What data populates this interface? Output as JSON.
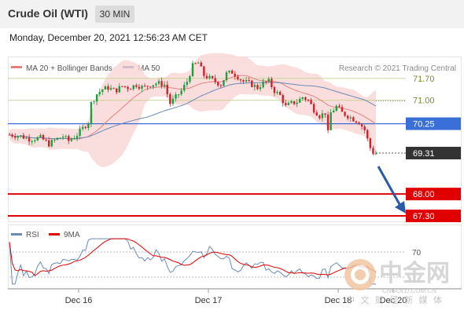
{
  "header": {
    "title": "Crude Oil (WTI)",
    "timeframe": "30 MIN"
  },
  "timestamp": "Monday, December 20, 2021 12:56:23 AM CET",
  "colors": {
    "resistance": "#c9d49a",
    "pivot": "#3a6fd8",
    "support": "#e00000",
    "ma20": "#e88080",
    "bands": "#f9d4d4",
    "ma50": "#6a8ab8",
    "candle_up": "#1e9e3e",
    "candle_down": "#d0202a",
    "arrow": "#2a5aa8",
    "last_price_box": "#333333",
    "rsi": "#6a8ab8",
    "rsi_ma": "#e00000"
  },
  "chart_data": [
    {
      "type": "candlestick",
      "legend": [
        {
          "label": "MA 20 + Bollinger Bands",
          "color": "#e88080"
        },
        {
          "label": "MA 50",
          "color": "#3a5a98"
        }
      ],
      "credit": "Research © 2021 Trading Central",
      "x_ticks": [
        "Dec 16",
        "Dec 17",
        "Dec 18",
        "Dec 20"
      ],
      "y_range": [
        67.1,
        72.4
      ],
      "levels": [
        {
          "value": 71.7,
          "label": "71.70",
          "kind": "resistance"
        },
        {
          "value": 71.0,
          "label": "71.00",
          "kind": "resistance"
        },
        {
          "value": 70.25,
          "label": "70.25",
          "kind": "pivot"
        },
        {
          "value": 69.31,
          "label": "69.31",
          "kind": "last"
        },
        {
          "value": 68.0,
          "label": "68.00",
          "kind": "support"
        },
        {
          "value": 67.3,
          "label": "67.30",
          "kind": "support"
        }
      ],
      "price_path": [
        [
          0,
          69.9
        ],
        [
          8,
          69.85
        ],
        [
          15,
          69.75
        ],
        [
          22,
          69.8
        ],
        [
          28,
          69.6
        ],
        [
          33,
          69.75
        ],
        [
          38,
          69.85
        ],
        [
          42,
          69.7
        ],
        [
          48,
          69.9
        ],
        [
          52,
          70.1
        ],
        [
          56,
          70.3
        ],
        [
          58,
          70.9
        ],
        [
          62,
          71.2
        ],
        [
          66,
          71.35
        ],
        [
          70,
          71.4
        ],
        [
          75,
          71.3
        ],
        [
          80,
          71.45
        ],
        [
          85,
          71.4
        ],
        [
          90,
          71.5
        ],
        [
          95,
          71.4
        ],
        [
          100,
          71.5
        ],
        [
          105,
          71.55
        ],
        [
          110,
          71.5
        ],
        [
          114,
          70.9
        ],
        [
          118,
          71.1
        ],
        [
          122,
          71.3
        ],
        [
          126,
          71.6
        ],
        [
          130,
          72.1
        ],
        [
          134,
          72.2
        ],
        [
          138,
          71.8
        ],
        [
          142,
          71.7
        ],
        [
          146,
          71.6
        ],
        [
          150,
          71.5
        ],
        [
          154,
          71.85
        ],
        [
          158,
          71.9
        ],
        [
          162,
          71.75
        ],
        [
          166,
          71.6
        ],
        [
          170,
          71.55
        ],
        [
          176,
          71.4
        ],
        [
          180,
          71.55
        ],
        [
          184,
          71.6
        ],
        [
          188,
          71.3
        ],
        [
          192,
          71.15
        ],
        [
          196,
          70.8
        ],
        [
          200,
          70.9
        ],
        [
          204,
          70.95
        ],
        [
          208,
          71.1
        ],
        [
          212,
          71.0
        ],
        [
          216,
          70.7
        ],
        [
          220,
          70.5
        ],
        [
          224,
          70.6
        ],
        [
          226,
          69.95
        ],
        [
          228,
          70.6
        ],
        [
          232,
          70.8
        ],
        [
          236,
          70.6
        ],
        [
          240,
          70.5
        ],
        [
          244,
          70.4
        ],
        [
          248,
          70.3
        ],
        [
          252,
          70.05
        ],
        [
          255,
          69.6
        ],
        [
          257,
          69.35
        ],
        [
          260,
          69.3
        ]
      ]
    },
    {
      "type": "line",
      "title": "",
      "legend": [
        {
          "label": "RSI",
          "color": "#6a8ab8"
        },
        {
          "label": "9MA",
          "color": "#e00000"
        }
      ],
      "levels": [
        {
          "value": 70,
          "label": "70"
        },
        {
          "value": 30,
          "label": ""
        }
      ],
      "y_range": [
        10,
        90
      ]
    }
  ],
  "watermark": {
    "name": "中金网",
    "url": "CNGOLD.COM.CN",
    "tagline": "中 文 财 经 新 媒 体"
  }
}
